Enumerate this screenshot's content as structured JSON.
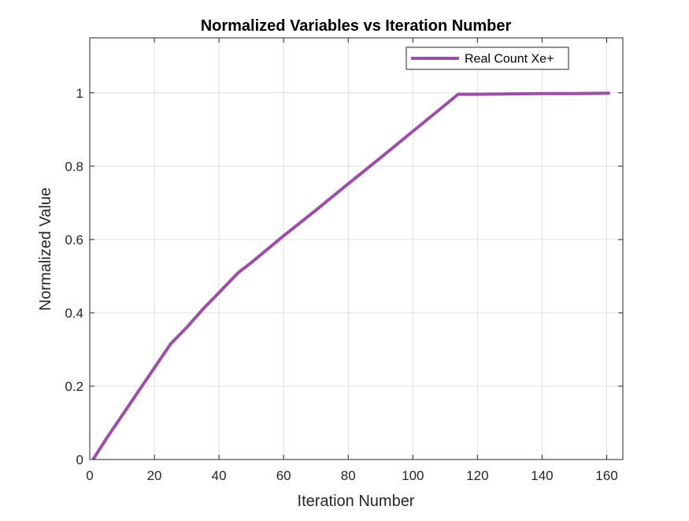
{
  "chart_data": {
    "type": "line",
    "title": "Normalized Variables vs Iteration Number",
    "xlabel": "Iteration Number",
    "ylabel": "Normalized Value",
    "xlim": [
      0,
      165
    ],
    "ylim": [
      0,
      1.15
    ],
    "xticks": [
      0,
      20,
      40,
      60,
      80,
      100,
      120,
      140,
      160
    ],
    "yticks": [
      0,
      0.2,
      0.4,
      0.6,
      0.8,
      1
    ],
    "xtick_labels": [
      "0",
      "20",
      "40",
      "60",
      "80",
      "100",
      "120",
      "140",
      "160"
    ],
    "ytick_labels": [
      "0",
      "0.2",
      "0.4",
      "0.6",
      "0.8",
      "1"
    ],
    "grid": true,
    "legend_position": "top-right",
    "series": [
      {
        "name": "Real Count Xe+",
        "color": "#9b4fa6",
        "x": [
          1,
          5,
          10,
          15,
          20,
          25,
          30,
          35,
          40,
          46,
          50,
          60,
          70,
          80,
          90,
          100,
          110,
          114,
          120,
          130,
          140,
          150,
          161
        ],
        "y": [
          0,
          0.055,
          0.12,
          0.185,
          0.25,
          0.315,
          0.36,
          0.41,
          0.455,
          0.51,
          0.537,
          0.61,
          0.68,
          0.752,
          0.823,
          0.895,
          0.967,
          0.996,
          0.996,
          0.997,
          0.998,
          0.998,
          0.999
        ]
      }
    ]
  }
}
